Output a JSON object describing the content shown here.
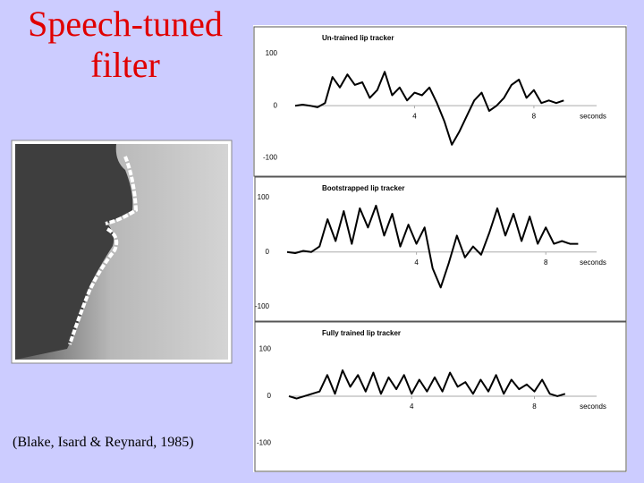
{
  "slide_title": "Speech-tuned filter",
  "citation": "(Blake, Isard & Reynard, 1985)",
  "chart_data": [
    {
      "type": "line",
      "title": "Un-trained lip tracker",
      "xlabel": "seconds",
      "x": [
        0,
        0.25,
        0.5,
        0.75,
        1,
        1.25,
        1.5,
        1.75,
        2,
        2.25,
        2.5,
        2.75,
        3,
        3.25,
        3.5,
        3.75,
        4,
        4.25,
        4.5,
        4.75,
        5,
        5.25,
        5.5,
        5.75,
        6,
        6.25,
        6.5,
        6.75,
        7,
        7.25,
        7.5,
        7.75,
        8,
        8.25,
        8.5,
        8.75,
        9
      ],
      "series": [
        {
          "values": [
            0,
            2,
            0,
            -3,
            5,
            55,
            35,
            60,
            40,
            45,
            15,
            30,
            65,
            20,
            35,
            10,
            25,
            20,
            35,
            5,
            -30,
            -75,
            -50,
            -20,
            10,
            25,
            -10,
            0,
            15,
            40,
            50,
            15,
            30,
            5,
            10,
            5,
            10
          ],
          "color": "#000000"
        }
      ],
      "xlim": [
        0,
        11
      ],
      "ylim": [
        -132,
        148
      ],
      "xticks": [
        4,
        8
      ],
      "yticks": [
        -100,
        0,
        100
      ]
    },
    {
      "type": "line",
      "title": "Bootstrapped lip tracker",
      "xlabel": "seconds",
      "x": [
        0,
        0.25,
        0.5,
        0.75,
        1,
        1.25,
        1.5,
        1.75,
        2,
        2.25,
        2.5,
        2.75,
        3,
        3.25,
        3.5,
        3.75,
        4,
        4.25,
        4.5,
        4.75,
        5,
        5.25,
        5.5,
        5.75,
        6,
        6.25,
        6.5,
        6.75,
        7,
        7.25,
        7.5,
        7.75,
        8,
        8.25,
        8.5,
        8.75,
        9
      ],
      "series": [
        {
          "values": [
            0,
            -2,
            2,
            0,
            10,
            60,
            20,
            75,
            15,
            80,
            45,
            85,
            30,
            70,
            10,
            50,
            15,
            45,
            -30,
            -65,
            -20,
            30,
            -10,
            10,
            -5,
            35,
            80,
            30,
            70,
            20,
            65,
            15,
            45,
            15,
            20,
            15,
            15
          ],
          "color": "#000000"
        }
      ],
      "xlim": [
        0,
        10.4
      ],
      "ylim": [
        -125,
        134
      ],
      "xticks": [
        4,
        8
      ],
      "yticks": [
        -100,
        0,
        100
      ]
    },
    {
      "type": "line",
      "title": "Fully trained lip tracker",
      "xlabel": "seconds",
      "x": [
        0,
        0.25,
        0.5,
        0.75,
        1,
        1.25,
        1.5,
        1.75,
        2,
        2.25,
        2.5,
        2.75,
        3,
        3.25,
        3.5,
        3.75,
        4,
        4.25,
        4.5,
        4.75,
        5,
        5.25,
        5.5,
        5.75,
        6,
        6.25,
        6.5,
        6.75,
        7,
        7.25,
        7.5,
        7.75,
        8,
        8.25,
        8.5,
        8.75,
        9
      ],
      "series": [
        {
          "values": [
            0,
            -5,
            0,
            5,
            10,
            45,
            5,
            55,
            20,
            45,
            10,
            50,
            5,
            40,
            15,
            45,
            5,
            35,
            10,
            40,
            10,
            50,
            20,
            30,
            5,
            35,
            10,
            45,
            5,
            35,
            15,
            25,
            10,
            35,
            5,
            0,
            5
          ],
          "color": "#000000"
        }
      ],
      "xlim": [
        0,
        10.9
      ],
      "ylim": [
        -156,
        152
      ],
      "xticks": [
        4,
        8
      ],
      "yticks": [
        -100,
        0,
        100
      ]
    }
  ]
}
